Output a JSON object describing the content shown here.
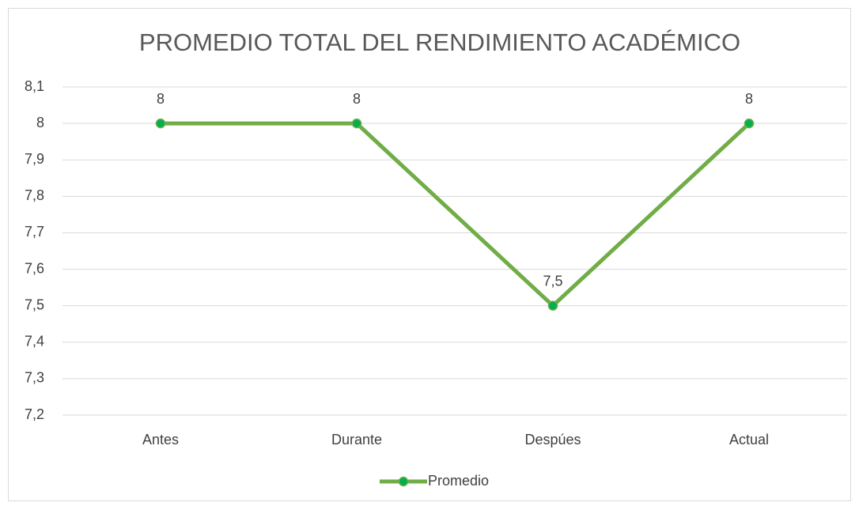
{
  "chart_data": {
    "type": "line",
    "title": "PROMEDIO TOTAL DEL RENDIMIENTO ACADÉMICO",
    "categories": [
      "Antes",
      "Durante",
      "Despúes",
      "Actual"
    ],
    "series": [
      {
        "name": "Promedio",
        "color": "#70ad47",
        "marker_color": "#00b050",
        "values": [
          8,
          8,
          7.5,
          8
        ],
        "value_labels": [
          "8",
          "8",
          "7,5",
          "8"
        ]
      }
    ],
    "ylim": [
      7.2,
      8.1
    ],
    "yticks": [
      {
        "value": 7.2,
        "label": "7,2"
      },
      {
        "value": 7.3,
        "label": "7,3"
      },
      {
        "value": 7.4,
        "label": "7,4"
      },
      {
        "value": 7.5,
        "label": "7,5"
      },
      {
        "value": 7.6,
        "label": "7,6"
      },
      {
        "value": 7.7,
        "label": "7,7"
      },
      {
        "value": 7.8,
        "label": "7,8"
      },
      {
        "value": 7.9,
        "label": "7,9"
      },
      8,
      {
        "value": 8.1,
        "label": "8,1"
      }
    ],
    "grid": true,
    "legend": "bottom"
  }
}
